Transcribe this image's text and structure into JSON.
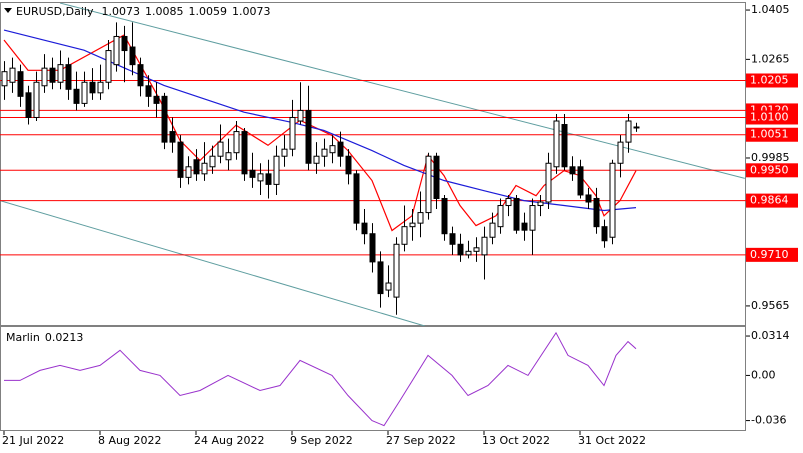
{
  "chart_data": [
    {
      "type": "candlestick",
      "title": "EURUSD,Daily",
      "categories": [
        "21 Jul 2022",
        null,
        null,
        null,
        null,
        null,
        null,
        null,
        null,
        null,
        null,
        null,
        "8 Aug 2022",
        null,
        null,
        null,
        null,
        null,
        null,
        null,
        null,
        null,
        null,
        null,
        "24 Aug 2022",
        null,
        null,
        null,
        null,
        null,
        null,
        null,
        null,
        null,
        null,
        null,
        "9 Sep 2022",
        null,
        null,
        null,
        null,
        null,
        null,
        null,
        null,
        null,
        null,
        null,
        "27 Sep 2022",
        null,
        null,
        null,
        null,
        null,
        null,
        null,
        null,
        null,
        null,
        null,
        "13 Oct 2022",
        null,
        null,
        null,
        null,
        null,
        null,
        null,
        null,
        null,
        null,
        null,
        "31 Oct 2022",
        null,
        null,
        null,
        null,
        null,
        null,
        null
      ],
      "open": [
        1.019,
        1.02,
        1.023,
        1.017,
        1.01,
        1.019,
        1.024,
        1.02,
        1.025,
        1.018,
        1.014,
        1.02,
        1.017,
        1.02,
        1.025,
        1.033,
        1.03,
        1.025,
        1.019,
        1.016,
        1.016,
        1.006,
        1.003,
        0.993,
        0.998,
        0.994,
        0.996,
        0.999,
        0.998,
        1.0,
        1.006,
        0.995,
        0.992,
        0.994,
        0.991,
        0.999,
        1.001,
        1.009,
        1.012,
        0.997,
        0.999,
        1.0,
        1.003,
        0.999,
        0.994,
        0.98,
        0.977,
        0.969,
        0.961,
        0.959,
        0.974,
        0.979,
        0.98,
        0.983,
        0.999,
        0.987,
        0.977,
        0.974,
        0.971,
        0.972,
        0.971,
        0.976,
        0.979,
        0.985,
        0.987,
        0.98,
        0.978,
        0.985,
        0.986,
        0.996,
        1.008,
        0.996,
        0.996,
        0.988,
        0.987,
        0.979,
        0.976,
        0.997,
        1.003,
        1.0073
      ],
      "high": [
        1.026,
        1.027,
        1.025,
        1.019,
        1.023,
        1.028,
        1.027,
        1.029,
        1.027,
        1.023,
        1.023,
        1.024,
        1.025,
        1.032,
        1.037,
        1.036,
        1.037,
        1.027,
        1.022,
        1.02,
        1.017,
        1.01,
        1.005,
        0.999,
        1.001,
        1.003,
        1.002,
        1.008,
        1.004,
        1.009,
        1.007,
        1.0,
        0.997,
        0.998,
        1.002,
        1.005,
        1.015,
        1.02,
        1.019,
        1.003,
        1.004,
        1.005,
        1.006,
        1.001,
        0.995,
        0.984,
        0.98,
        0.972,
        0.968,
        0.976,
        0.985,
        0.984,
        0.989,
        1.0,
        1.0,
        0.988,
        0.979,
        0.977,
        0.975,
        0.976,
        0.979,
        0.983,
        0.987,
        0.988,
        0.988,
        0.983,
        0.987,
        0.988,
        1.0,
        1.011,
        1.011,
        0.999,
        0.998,
        0.99,
        0.99,
        0.981,
        0.998,
        1.005,
        1.011,
        1.0085
      ],
      "low": [
        1.015,
        1.017,
        1.013,
        1.008,
        1.009,
        1.017,
        1.018,
        1.018,
        1.015,
        1.012,
        1.013,
        1.015,
        1.015,
        1.018,
        1.023,
        1.02,
        1.022,
        1.016,
        1.013,
        1.01,
        1.001,
        1.0,
        0.99,
        0.991,
        0.992,
        0.992,
        0.994,
        0.997,
        0.995,
        0.998,
        0.992,
        0.99,
        0.988,
        0.987,
        0.988,
        0.996,
        0.999,
        1.008,
        0.995,
        0.994,
        0.996,
        0.997,
        0.996,
        0.991,
        0.978,
        0.974,
        0.966,
        0.956,
        0.959,
        0.954,
        0.972,
        0.975,
        0.976,
        0.981,
        0.984,
        0.975,
        0.971,
        0.969,
        0.97,
        0.969,
        0.964,
        0.974,
        0.977,
        0.982,
        0.977,
        0.975,
        0.971,
        0.982,
        0.984,
        0.994,
        0.995,
        0.992,
        0.987,
        0.984,
        0.977,
        0.973,
        0.974,
        0.993,
        1.0,
        1.0059
      ],
      "close": [
        1.023,
        1.024,
        1.016,
        1.01,
        1.02,
        1.024,
        1.02,
        1.025,
        1.018,
        1.014,
        1.02,
        1.017,
        1.02,
        1.029,
        1.033,
        1.029,
        1.025,
        1.019,
        1.016,
        1.014,
        1.003,
        1.003,
        0.993,
        0.996,
        0.994,
        0.997,
        0.999,
        1.003,
        1.0,
        1.006,
        0.994,
        0.993,
        0.994,
        0.991,
        0.999,
        1.001,
        1.01,
        1.012,
        0.997,
        0.999,
        1.001,
        1.002,
        0.999,
        0.994,
        0.98,
        0.977,
        0.969,
        0.96,
        0.963,
        0.974,
        0.979,
        0.98,
        0.983,
        0.999,
        0.987,
        0.977,
        0.974,
        0.971,
        0.972,
        0.973,
        0.976,
        0.98,
        0.985,
        0.987,
        0.978,
        0.978,
        0.985,
        0.986,
        0.997,
        1.009,
        0.996,
        0.994,
        0.988,
        0.986,
        0.979,
        0.975,
        0.997,
        1.003,
        1.009,
        1.0073
      ],
      "overlays": [
        {
          "color": "#ff0000",
          "x": [
            0,
            3,
            7,
            15,
            19.5,
            22,
            24.5,
            29,
            33,
            37,
            41,
            43,
            46,
            48.5,
            51,
            53,
            55,
            57,
            59,
            61.5,
            64,
            66.5,
            67.5,
            70,
            72,
            74,
            75,
            77,
            79
          ],
          "values": [
            1.032,
            1.0234,
            1.0234,
            1.0334,
            1.0149,
            1.0035,
            0.9978,
            1.0078,
            1.0021,
            1.0092,
            1.0049,
            1.0006,
            0.9921,
            0.9779,
            0.9821,
            0.9992,
            0.9935,
            0.985,
            0.9793,
            0.9821,
            0.9907,
            0.9878,
            0.9907,
            0.9949,
            0.9935,
            0.9878,
            0.9821,
            0.9864,
            0.9949
          ]
        },
        {
          "color": "#1c1cd8",
          "x": [
            0,
            10,
            20,
            30,
            36,
            40,
            46,
            50,
            55,
            60,
            65,
            70,
            75,
            79
          ],
          "values": [
            1.0348,
            1.0291,
            1.0191,
            1.0115,
            1.0086,
            1.0063,
            1.0006,
            0.9964,
            0.9921,
            0.9892,
            0.9864,
            0.985,
            0.9836,
            0.9844
          ]
        }
      ],
      "trendlines": [
        {
          "color": "#5f9ea0",
          "x": [
            7,
            92.6
          ],
          "values": [
            1.0425,
            0.9927
          ]
        },
        {
          "color": "#5f9ea0",
          "x": [
            -0.5,
            52.6
          ],
          "values": [
            0.9864,
            0.9508
          ]
        }
      ],
      "levels": [
        1.0205,
        {
          "value": 1.012,
          "label": "1.0120"
        },
        {
          "value": 1.01,
          "label": "1.0100"
        },
        1.0051,
        {
          "value": 0.995,
          "label": "0.9950"
        },
        0.9864,
        {
          "value": 0.971,
          "label": "0.9710"
        }
      ],
      "level_color": "#ff0000",
      "ylim": [
        0.9508,
        1.0425
      ],
      "yticks": [
        1.0405,
        1.0265,
        0.9985,
        0.9565
      ]
    },
    {
      "type": "line",
      "title": "Marlin",
      "color": "#9932cc",
      "x": [
        0,
        2,
        4.5,
        7,
        9.5,
        12,
        14.5,
        17,
        19.5,
        22,
        24.5,
        28,
        32,
        34.5,
        37,
        41,
        43,
        46,
        47.5,
        49.5,
        53,
        56,
        58,
        60.5,
        63,
        65.5,
        69,
        70.5,
        73,
        75,
        76.5,
        78,
        79
      ],
      "values": [
        -0.004,
        -0.004,
        0.004,
        0.008,
        0.004,
        0.008,
        0.02,
        0.004,
        0,
        -0.016,
        -0.012,
        0,
        -0.012,
        -0.008,
        0.012,
        0,
        -0.016,
        -0.036,
        -0.04,
        -0.02,
        0.016,
        0,
        -0.016,
        -0.008,
        0.008,
        0,
        0.034,
        0.016,
        0.008,
        -0.008,
        0.016,
        0.027,
        0.0213
      ],
      "ylim": [
        -0.0443,
        0.0386
      ],
      "yticks": [
        0.0314,
        {
          "value": 0,
          "label": "0.00"
        },
        -0.036
      ]
    }
  ]
}
